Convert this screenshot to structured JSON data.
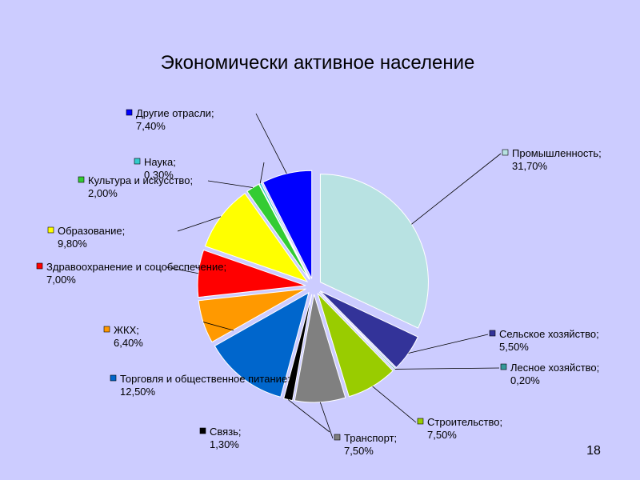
{
  "chart_data": {
    "type": "pie",
    "title": "Экономически активное население",
    "categories": [
      "Промышленность",
      "Сельское хозяйство",
      "Лесное хозяйство",
      "Строительство",
      "Транспорт",
      "Связь",
      "Торговля и общественное питание",
      "ЖКХ",
      "Здравоохранение и соцобеспечение",
      "Образование",
      "Культура и искусство",
      "Наука",
      "Другие отрасли"
    ],
    "values": [
      31.7,
      5.5,
      0.2,
      7.5,
      7.5,
      1.3,
      12.5,
      6.4,
      7.0,
      9.8,
      2.0,
      0.3,
      7.4
    ],
    "value_labels": [
      "31,70%",
      "5,50%",
      "0,20%",
      "7,50%",
      "7,50%",
      "1,30%",
      "12,50%",
      "6,40%",
      "7,00%",
      "9,80%",
      "2,00%",
      "0,30%",
      "7,40%"
    ],
    "separator": ";",
    "colors": [
      "#b8e2e2",
      "#333399",
      "#339999",
      "#99cc00",
      "#808080",
      "#000000",
      "#0066cc",
      "#ff9900",
      "#ff0000",
      "#ffff00",
      "#33cc33",
      "#33cccc",
      "#0000ff"
    ],
    "slide_number": "18"
  }
}
